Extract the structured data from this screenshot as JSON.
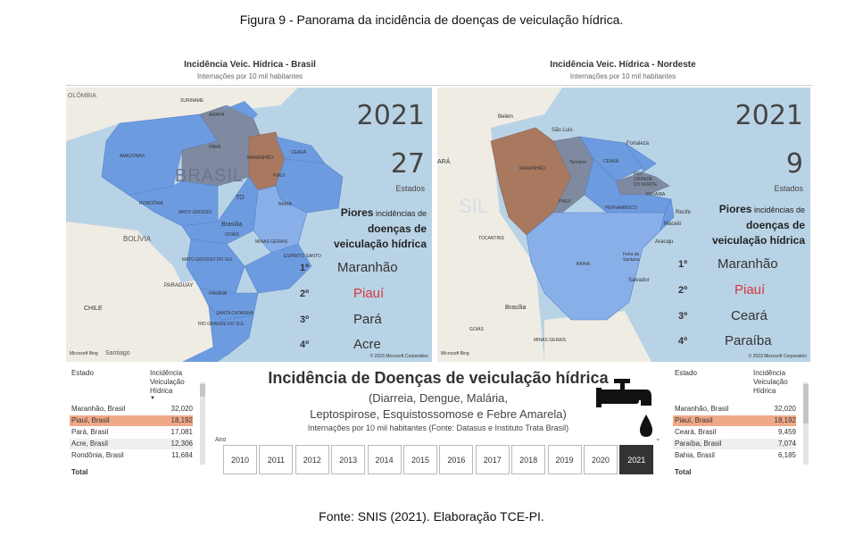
{
  "figure_caption": "Figura 9 - Panorama da incidência de doenças de veiculação hídrica.",
  "source": "Fonte: SNIS (2021). Elaboração TCE-PI.",
  "left_panel": {
    "title": "Incidência Veic. Hídrica - Brasil",
    "subtitle": "Internações por 10 mil habitantes",
    "year": "2021",
    "count": "27",
    "count_label": "Estados",
    "piores_bold": "Piores",
    "piores_rest": " incidências de",
    "piores_line2": "doenças de",
    "piores_line3": "veiculação hídrica",
    "ranking": [
      {
        "pos": "1º",
        "name": "Maranhão"
      },
      {
        "pos": "2º",
        "name": "Piauí"
      },
      {
        "pos": "3º",
        "name": "Pará"
      },
      {
        "pos": "4º",
        "name": "Acre"
      }
    ],
    "map_labels": {
      "colombia": "OLÔMBIA",
      "suriname": "SURINAME",
      "amapa": "AMAPÁ",
      "amazonas": "AMAZONAS",
      "para": "PARÁ",
      "maranhao": "MARANHÃO",
      "ceara": "CEARÁ",
      "brasil": "BRASIL",
      "piaui": "PIAUÍ",
      "rondonia": "RONDÔNIA",
      "mato_grosso": "MATO GROSSO",
      "tocantins": "TO",
      "bahia": "BAHIA",
      "brasilia": "Brasília",
      "goias": "GOIÁS",
      "minas": "MINAS GERAIS",
      "bolivia": "BOLÍVIA",
      "ms": "MATO GROSSO DO SUL",
      "es": "ESPÍRITO SANTO",
      "paraguay": "PARAGUAY",
      "parana": "PARANÁ",
      "chile": "CHILE",
      "santa_catarina": "SANTA CATARINA",
      "rs": "RIO GRANDE DO SUL",
      "santiago": "Santiago"
    },
    "copyright": "© 2023 Microsoft Corporation",
    "bing": "Microsoft Bing"
  },
  "right_panel": {
    "title": "Incidência Veic. Hídrica - Nordeste",
    "subtitle": "Internações por 10 mil habitantes",
    "year": "2021",
    "count": "9",
    "count_label": "Estados",
    "piores_bold": "Piores",
    "piores_rest": " incidências de",
    "piores_line2": "doenças de",
    "piores_line3": "veiculação hídrica",
    "ranking": [
      {
        "pos": "1º",
        "name": "Maranhão"
      },
      {
        "pos": "2º",
        "name": "Piauí"
      },
      {
        "pos": "3º",
        "name": "Ceará"
      },
      {
        "pos": "4º",
        "name": "Paraíba"
      }
    ],
    "map_labels": {
      "belem": "Belém",
      "sao_luis": "São Luís",
      "fortaleza": "Fortaleza",
      "maranhao": "MARANHÃO",
      "teresina": "Teresina",
      "ceara": "CEARÁ",
      "rn": "RIO GRANDE DO NORTE",
      "paraiba": "PARAÍBA",
      "pernambuco": "PERNAMBUCO",
      "recife": "Recife",
      "maceio": "Maceió",
      "aracaju": "Aracaju",
      "piaui": "PIAUÍ",
      "bahia": "BAHIA",
      "tocantins": "TOCANTINS",
      "feira": "Feira de Santana",
      "salvador": "Salvador",
      "brasilia": "Brasília",
      "goias": "GOIÁS",
      "minas": "MINAS GERAIS",
      "ara": "ARÁ",
      "sil": "SIL"
    },
    "copyright": "© 2023 Microsoft Corporation",
    "bing": "Microsoft Bing"
  },
  "left_table": {
    "col1": "Estado",
    "col2_lines": [
      "Incidência",
      "Veiculação",
      "Hídrica"
    ],
    "rows": [
      {
        "estado": "Maranhão, Brasil",
        "valor": "32,020"
      },
      {
        "estado": "Piauí, Brasil",
        "valor": "18,192"
      },
      {
        "estado": "Pará, Brasil",
        "valor": "17,081"
      },
      {
        "estado": "Acre, Brasil",
        "valor": "12,306"
      },
      {
        "estado": "Rondônia, Brasil",
        "valor": "11,684"
      }
    ],
    "total": "Total"
  },
  "right_table": {
    "col1": "Estado",
    "col2_lines": [
      "Incidência",
      "Veiculação",
      "Hídrica"
    ],
    "rows": [
      {
        "estado": "Maranhão, Brasil",
        "valor": "32,020"
      },
      {
        "estado": "Piauí, Brasil",
        "valor": "18,192"
      },
      {
        "estado": "Ceará, Brasil",
        "valor": "9,459"
      },
      {
        "estado": "Paraíba, Brasil",
        "valor": "7,074"
      },
      {
        "estado": "Bahia, Brasil",
        "valor": "6,185"
      }
    ],
    "total": "Total"
  },
  "center": {
    "title": "Incidência de Doenças de veiculação hídrica",
    "line1": "(Diarreia, Dengue, Malária,",
    "line2": "Leptospirose, Esquistossomose e Febre Amarela)",
    "line3": "Internações por 10 mil habitantes (Fonte: Datasus e Instituto Trata Brasil)",
    "ano_label": "Ano",
    "years": [
      "2010",
      "2011",
      "2012",
      "2013",
      "2014",
      "2015",
      "2016",
      "2017",
      "2018",
      "2019",
      "2020",
      "2021"
    ],
    "selected_year": "2021"
  },
  "colors": {
    "sea": "#b9d3e6",
    "land": "#efece4",
    "state_blue": "#6d9be0",
    "state_blue_light": "#89afe8",
    "state_grey": "#7f8aa0",
    "state_brown": "#a8785f",
    "highlight_row": "#f0a988",
    "rank_highlight": "#d9363e"
  }
}
